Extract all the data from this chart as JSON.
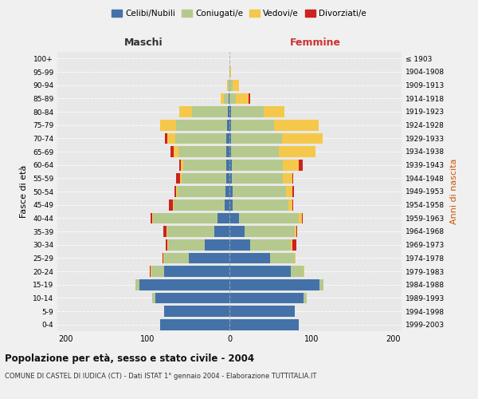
{
  "age_groups": [
    "0-4",
    "5-9",
    "10-14",
    "15-19",
    "20-24",
    "25-29",
    "30-34",
    "35-39",
    "40-44",
    "45-49",
    "50-54",
    "55-59",
    "60-64",
    "65-69",
    "70-74",
    "75-79",
    "80-84",
    "85-89",
    "90-94",
    "95-99",
    "100+"
  ],
  "birth_years": [
    "1999-2003",
    "1994-1998",
    "1989-1993",
    "1984-1988",
    "1979-1983",
    "1974-1978",
    "1969-1973",
    "1964-1968",
    "1959-1963",
    "1954-1958",
    "1949-1953",
    "1944-1948",
    "1939-1943",
    "1934-1938",
    "1929-1933",
    "1924-1928",
    "1919-1923",
    "1914-1918",
    "1909-1913",
    "1904-1908",
    "≤ 1903"
  ],
  "maschi": {
    "celibi": [
      85,
      80,
      90,
      110,
      80,
      50,
      30,
      18,
      15,
      6,
      5,
      4,
      4,
      4,
      4,
      3,
      2,
      1,
      0,
      0,
      0
    ],
    "coniugati": [
      0,
      0,
      4,
      5,
      15,
      30,
      45,
      58,
      78,
      62,
      58,
      54,
      52,
      58,
      62,
      62,
      44,
      6,
      2,
      0,
      0
    ],
    "vedovi": [
      0,
      0,
      0,
      0,
      1,
      1,
      1,
      1,
      1,
      1,
      2,
      2,
      3,
      6,
      10,
      20,
      15,
      4,
      1,
      0,
      0
    ],
    "divorziati": [
      0,
      0,
      0,
      0,
      1,
      1,
      2,
      4,
      2,
      5,
      2,
      5,
      2,
      4,
      3,
      0,
      0,
      0,
      0,
      0,
      0
    ]
  },
  "femmine": {
    "nubili": [
      85,
      80,
      90,
      110,
      75,
      50,
      25,
      18,
      12,
      4,
      4,
      3,
      3,
      2,
      2,
      2,
      2,
      0,
      0,
      0,
      0
    ],
    "coniugate": [
      0,
      0,
      4,
      5,
      15,
      30,
      50,
      62,
      73,
      68,
      65,
      62,
      62,
      58,
      62,
      52,
      40,
      8,
      4,
      0,
      0
    ],
    "vedove": [
      0,
      0,
      0,
      0,
      1,
      1,
      2,
      2,
      3,
      5,
      8,
      12,
      20,
      45,
      50,
      55,
      25,
      15,
      8,
      2,
      0
    ],
    "divorziate": [
      0,
      0,
      0,
      0,
      0,
      0,
      5,
      1,
      1,
      1,
      2,
      1,
      4,
      0,
      0,
      0,
      0,
      2,
      0,
      0,
      0
    ]
  },
  "colors": {
    "celibi": "#4472a8",
    "coniugati": "#b5c98e",
    "vedovi": "#f5c84c",
    "divorziati": "#cc2222"
  },
  "xlim": 210,
  "title": "Popolazione per età, sesso e stato civile - 2004",
  "subtitle": "COMUNE DI CASTEL DI IUDICA (CT) - Dati ISTAT 1° gennaio 2004 - Elaborazione TUTTITALIA.IT",
  "ylabel_left": "Fasce di età",
  "ylabel_right": "Anni di nascita",
  "xlabel_left": "Maschi",
  "xlabel_right": "Femmine",
  "bg_color": "#f0f0f0",
  "plot_bg": "#e8e8e8",
  "legend_labels": [
    "Celibi/Nubili",
    "Coniugati/e",
    "Vedovi/e",
    "Divorziati/e"
  ]
}
